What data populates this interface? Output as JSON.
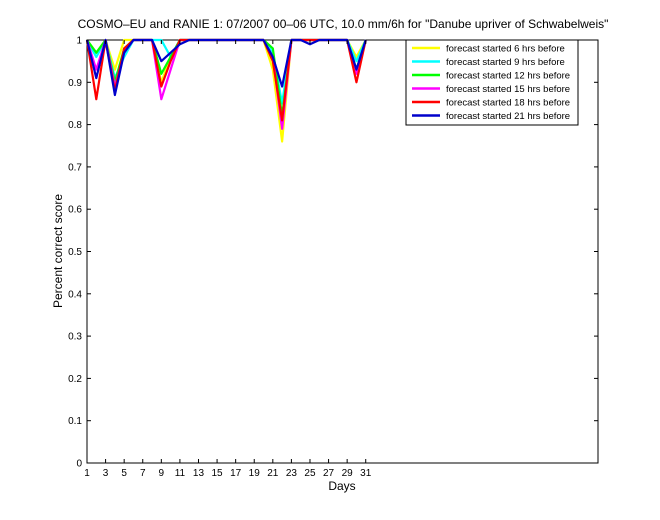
{
  "chart_data": {
    "type": "line",
    "title": "COSMO–EU and RANIE 1: 07/2007 00–06 UTC, 10.0 mm/6h for \"Danube upriver of Schwabelweis\"",
    "xlabel": "Days",
    "ylabel": "Percent correct score",
    "xlim": [
      1,
      56
    ],
    "ylim": [
      0,
      1
    ],
    "grid": false,
    "legend_position": "top-right",
    "x_ticks": [
      1,
      3,
      5,
      7,
      9,
      11,
      13,
      15,
      17,
      19,
      21,
      23,
      25,
      27,
      29,
      31
    ],
    "x_tick_labels": [
      "1",
      "3",
      "5",
      "7",
      "9",
      "11",
      "13",
      "15",
      "17",
      "19",
      "21",
      "23",
      "25",
      "27",
      "29",
      "31"
    ],
    "y_ticks": [
      0,
      0.1,
      0.2,
      0.3,
      0.4,
      0.5,
      0.6,
      0.7,
      0.8,
      0.9,
      1
    ],
    "y_tick_labels": [
      "0",
      "0.1",
      "0.2",
      "0.3",
      "0.4",
      "0.5",
      "0.6",
      "0.7",
      "0.8",
      "0.9",
      "1"
    ],
    "x": [
      1,
      2,
      3,
      4,
      5,
      6,
      7,
      8,
      9,
      10,
      11,
      12,
      13,
      14,
      15,
      16,
      17,
      18,
      19,
      20,
      21,
      22,
      23,
      24,
      25,
      26,
      27,
      28,
      29,
      30,
      31
    ],
    "series": [
      {
        "name": "forecast started 6 hrs before",
        "color": "#ffff00",
        "values": [
          1,
          0.97,
          1,
          0.93,
          1,
          1,
          1,
          1,
          0.9,
          0.96,
          1,
          1,
          1,
          1,
          1,
          1,
          1,
          1,
          1,
          1,
          0.93,
          0.76,
          1,
          1,
          1,
          1,
          1,
          1,
          1,
          0.96,
          1
        ]
      },
      {
        "name": "forecast started 9 hrs before",
        "color": "#00ffff",
        "values": [
          1,
          0.96,
          1,
          0.91,
          0.96,
          1,
          1,
          1,
          1,
          0.96,
          1,
          1,
          1,
          1,
          1,
          1,
          1,
          1,
          1,
          1,
          0.97,
          0.85,
          1,
          1,
          1,
          1,
          1,
          1,
          1,
          0.95,
          1
        ]
      },
      {
        "name": "forecast started 12 hrs before",
        "color": "#00ff00",
        "values": [
          1,
          0.97,
          1,
          0.9,
          0.98,
          1,
          1,
          1,
          0.92,
          0.96,
          1,
          1,
          1,
          1,
          1,
          1,
          1,
          1,
          1,
          1,
          0.98,
          0.82,
          1,
          1,
          1,
          1,
          1,
          1,
          1,
          0.93,
          1
        ]
      },
      {
        "name": "forecast started 15 hrs before",
        "color": "#ff00ff",
        "values": [
          1,
          0.93,
          1,
          0.89,
          0.97,
          1,
          1,
          1,
          0.86,
          0.93,
          1,
          1,
          1,
          1,
          1,
          1,
          1,
          1,
          1,
          1,
          0.96,
          0.79,
          1,
          1,
          1,
          1,
          1,
          1,
          1,
          0.92,
          1
        ]
      },
      {
        "name": "forecast started 18 hrs before",
        "color": "#ff0000",
        "values": [
          1,
          0.86,
          1,
          0.88,
          0.98,
          1,
          1,
          1,
          0.89,
          0.95,
          1,
          1,
          1,
          1,
          1,
          1,
          1,
          1,
          1,
          1,
          0.95,
          0.81,
          1,
          1,
          1,
          1,
          1,
          1,
          1,
          0.9,
          1
        ]
      },
      {
        "name": "forecast started 21 hrs before",
        "color": "#0000cc",
        "values": [
          1,
          0.91,
          1,
          0.87,
          0.97,
          1,
          1,
          1,
          0.95,
          0.97,
          0.99,
          1,
          1,
          1,
          1,
          1,
          1,
          1,
          1,
          1,
          0.96,
          0.89,
          1,
          1,
          0.99,
          1,
          1,
          1,
          1,
          0.93,
          1
        ]
      }
    ]
  }
}
